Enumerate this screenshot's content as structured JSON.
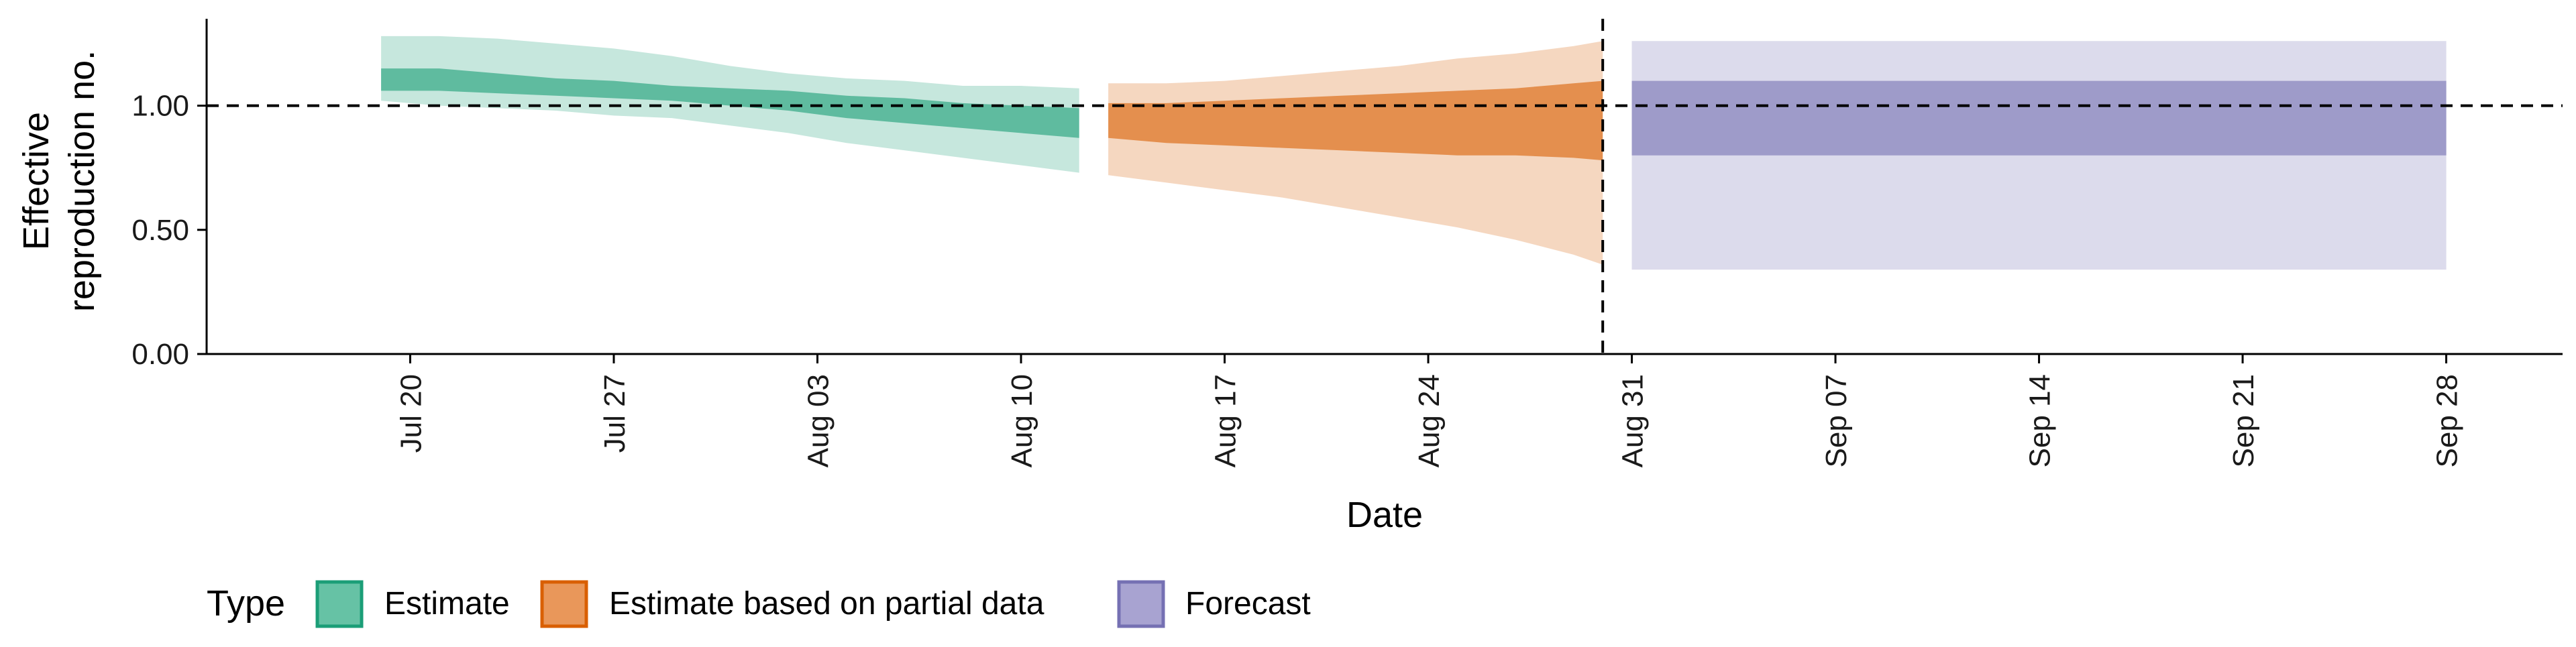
{
  "chart_data": {
    "type": "area",
    "xlabel": "Date",
    "ylabel": [
      "Effective",
      "reproduction no."
    ],
    "ylim": [
      0,
      1.35
    ],
    "yticks": [
      0.0,
      0.5,
      1.0
    ],
    "ytick_labels": [
      "0.00",
      "0.50",
      "1.00"
    ],
    "xlim": [
      "2020-07-13",
      "2020-10-02"
    ],
    "xticks": [
      "2020-07-20",
      "2020-07-27",
      "2020-08-03",
      "2020-08-10",
      "2020-08-17",
      "2020-08-24",
      "2020-08-31",
      "2020-09-07",
      "2020-09-14",
      "2020-09-21",
      "2020-09-28"
    ],
    "xtick_labels": [
      "Jul 20",
      "Jul 27",
      "Aug 03",
      "Aug 10",
      "Aug 17",
      "Aug 24",
      "Aug 31",
      "Sep 07",
      "Sep 14",
      "Sep 21",
      "Sep 28"
    ],
    "reference_line_y": 1.0,
    "vertical_line_x": "2020-08-30",
    "grid": false,
    "legend": {
      "title": "Type",
      "placement": "bottom-left",
      "entries": [
        {
          "name": "Estimate",
          "fill": "#66c2a5",
          "border": "#1b9e77"
        },
        {
          "name": "Estimate based on partial data",
          "fill": "#e9975a",
          "border": "#d95f02"
        },
        {
          "name": "Forecast",
          "fill": "#a8a3d1",
          "border": "#7570b3"
        }
      ]
    },
    "series": [
      {
        "name": "Estimate",
        "color": "#1b9e77",
        "x": [
          "2020-07-19",
          "2020-07-21",
          "2020-07-23",
          "2020-07-25",
          "2020-07-27",
          "2020-07-29",
          "2020-07-31",
          "2020-08-02",
          "2020-08-04",
          "2020-08-06",
          "2020-08-08",
          "2020-08-10",
          "2020-08-12"
        ],
        "lower90": [
          1.02,
          1.0,
          0.99,
          0.98,
          0.96,
          0.95,
          0.92,
          0.89,
          0.85,
          0.82,
          0.79,
          0.76,
          0.73
        ],
        "lower50": [
          1.06,
          1.06,
          1.05,
          1.04,
          1.03,
          1.02,
          1.0,
          0.98,
          0.95,
          0.93,
          0.91,
          0.89,
          0.87
        ],
        "upper50": [
          1.15,
          1.15,
          1.13,
          1.11,
          1.1,
          1.08,
          1.07,
          1.06,
          1.04,
          1.03,
          1.01,
          1.0,
          0.99
        ],
        "upper90": [
          1.28,
          1.28,
          1.27,
          1.25,
          1.23,
          1.2,
          1.16,
          1.13,
          1.11,
          1.1,
          1.08,
          1.08,
          1.07
        ]
      },
      {
        "name": "Estimate based on partial data",
        "color": "#d95f02",
        "x": [
          "2020-08-13",
          "2020-08-15",
          "2020-08-17",
          "2020-08-19",
          "2020-08-21",
          "2020-08-23",
          "2020-08-25",
          "2020-08-27",
          "2020-08-29",
          "2020-08-30"
        ],
        "lower90": [
          0.72,
          0.69,
          0.66,
          0.63,
          0.59,
          0.55,
          0.51,
          0.46,
          0.4,
          0.36
        ],
        "lower50": [
          0.87,
          0.85,
          0.84,
          0.83,
          0.82,
          0.81,
          0.8,
          0.8,
          0.79,
          0.78
        ],
        "upper50": [
          1.01,
          1.01,
          1.02,
          1.03,
          1.04,
          1.05,
          1.06,
          1.07,
          1.09,
          1.1
        ],
        "upper90": [
          1.09,
          1.09,
          1.1,
          1.12,
          1.14,
          1.16,
          1.19,
          1.21,
          1.24,
          1.26
        ]
      },
      {
        "name": "Forecast",
        "color": "#7570b3",
        "x": [
          "2020-08-31",
          "2020-09-28"
        ],
        "lower90": [
          0.34,
          0.34
        ],
        "lower50": [
          0.8,
          0.8
        ],
        "upper50": [
          1.1,
          1.1
        ],
        "upper90": [
          1.26,
          1.26
        ]
      }
    ]
  }
}
